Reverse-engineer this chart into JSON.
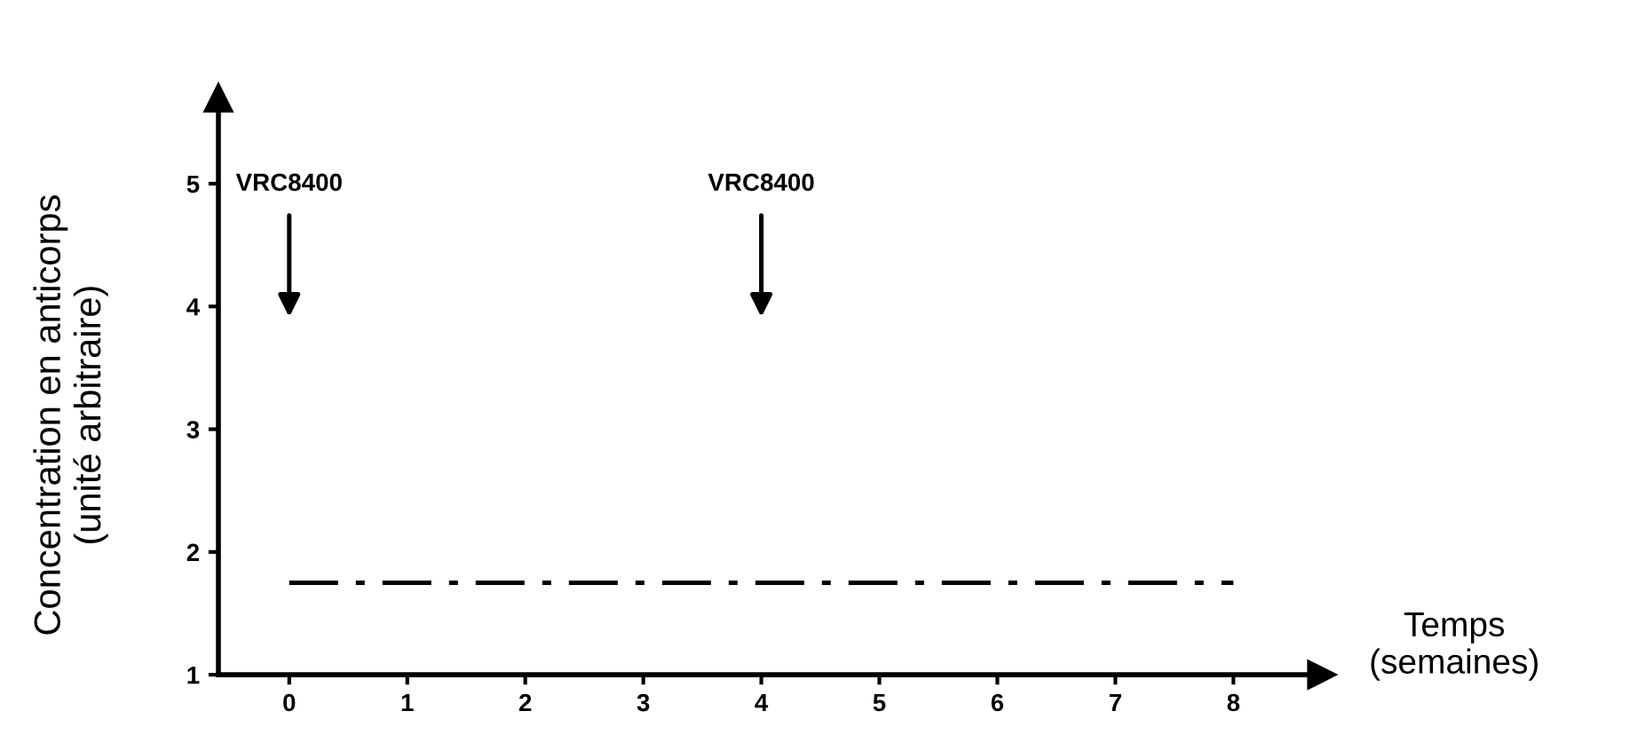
{
  "chart_data": {
    "type": "line",
    "xlabel": "Temps\n(semaines)",
    "ylabel": "Concentration en anticorps\n(unité arbitraire)",
    "series": [
      {
        "x": [
          0,
          8
        ],
        "values": [
          1.75,
          1.75
        ],
        "color": "#000000",
        "line_style": "dashdot",
        "marker": "none"
      }
    ],
    "xlim": [
      -0.6,
      8.75
    ],
    "ylim": [
      1,
      5.7
    ],
    "xticks": [
      0,
      1,
      2,
      3,
      4,
      5,
      6,
      7,
      8
    ],
    "yticks": [
      1,
      2,
      3,
      4,
      5
    ],
    "annotations": [
      "VRC8400",
      "VRC8400"
    ],
    "grid": false,
    "legend": false
  }
}
